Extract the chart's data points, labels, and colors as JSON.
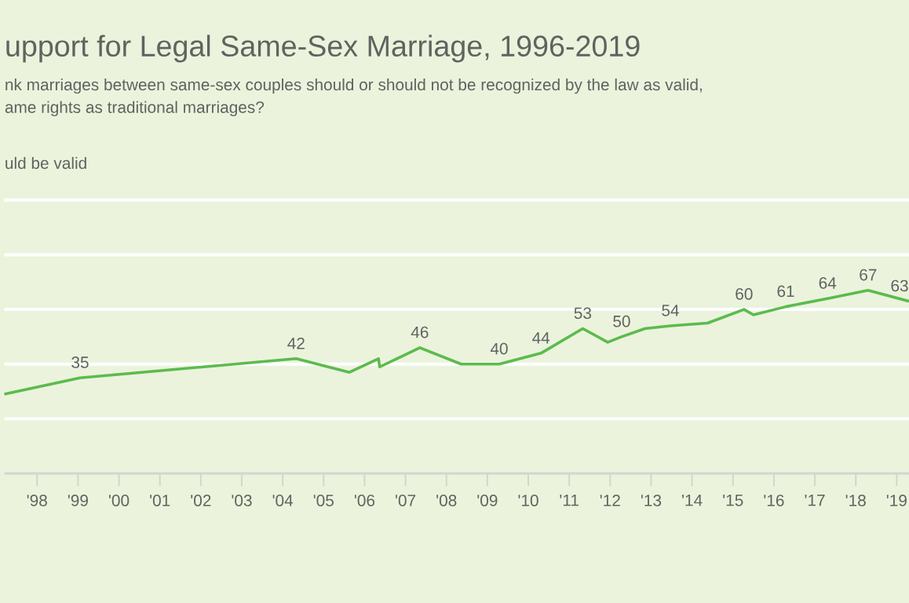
{
  "chart_data": {
    "type": "line",
    "title": "upport for Legal Same-Sex Marriage, 1996-2019",
    "subtitle": "nk marriages between same-sex couples should or should not be recognized by the law as valid,\name rights as traditional marriages?",
    "annotations": [
      "uld be valid"
    ],
    "xlim": [
      1997.2,
      2019.3
    ],
    "xticks": [
      {
        "value": 1998,
        "label": "'98"
      },
      {
        "value": 1999,
        "label": "'99"
      },
      {
        "value": 2000,
        "label": "'00"
      },
      {
        "value": 2001,
        "label": "'01"
      },
      {
        "value": 2002,
        "label": "'02"
      },
      {
        "value": 2003,
        "label": "'03"
      },
      {
        "value": 2004,
        "label": "'04"
      },
      {
        "value": 2005,
        "label": "'05"
      },
      {
        "value": 2006,
        "label": "'06"
      },
      {
        "value": 2007,
        "label": "'07"
      },
      {
        "value": 2008,
        "label": "'08"
      },
      {
        "value": 2009,
        "label": "'09"
      },
      {
        "value": 2010,
        "label": "'10"
      },
      {
        "value": 2011,
        "label": "'11"
      },
      {
        "value": 2012,
        "label": "'12"
      },
      {
        "value": 2013,
        "label": "'13"
      },
      {
        "value": 2014,
        "label": "'14"
      },
      {
        "value": 2015,
        "label": "'15"
      },
      {
        "value": 2016,
        "label": "'16"
      },
      {
        "value": 2017,
        "label": "'17"
      },
      {
        "value": 2018,
        "label": "'18"
      },
      {
        "value": 2019,
        "label": "'19"
      }
    ],
    "ylim": [
      0,
      100
    ],
    "yticks": [
      {
        "value": 20,
        "label": null
      },
      {
        "value": 40,
        "label": null
      },
      {
        "value": 60,
        "label": null
      },
      {
        "value": 80,
        "label": null
      },
      {
        "value": 100,
        "label": null
      }
    ],
    "tick_labels": "x",
    "grid": "y",
    "marker": "none",
    "line_style": "solid",
    "series": [
      {
        "color": "#5cbb4c",
        "x": [
          1997.2,
          1999.05,
          2004.33,
          2005.63,
          2006.34,
          2006.37,
          2007.35,
          2008.36,
          2009.29,
          2010.31,
          2011.33,
          2011.94,
          2012.28,
          2012.85,
          2013.47,
          2014.38,
          2015.27,
          2015.5,
          2016.29,
          2017.31,
          2018.3,
          2019.3
        ],
        "values": [
          29,
          35,
          42,
          37,
          42,
          39,
          46,
          40,
          40,
          44,
          53,
          48,
          50,
          53,
          54,
          55,
          60,
          58,
          61,
          64,
          67,
          63
        ],
        "value_labels": [
          null,
          "35",
          "42",
          null,
          null,
          null,
          "46",
          null,
          "40",
          "44",
          "53",
          null,
          "50",
          null,
          "54",
          null,
          "60",
          null,
          "61",
          "64",
          "67",
          "63"
        ]
      }
    ]
  }
}
